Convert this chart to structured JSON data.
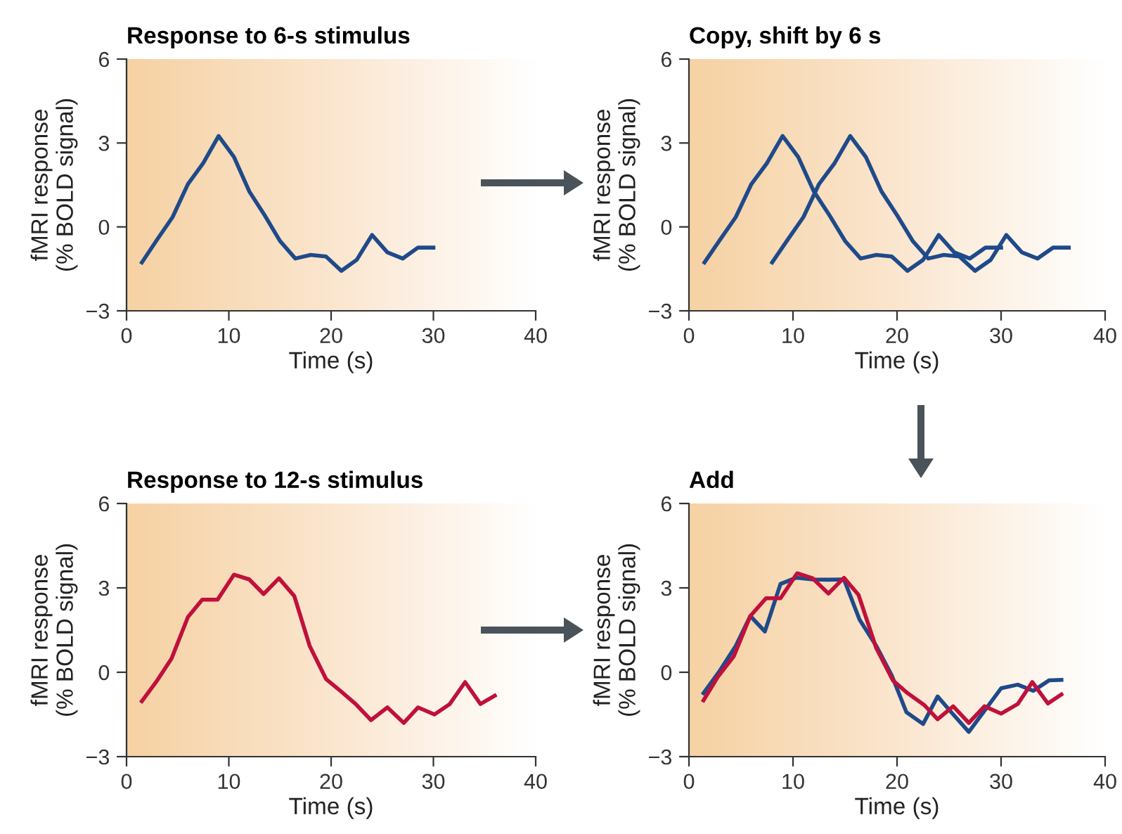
{
  "chart_data": [
    {
      "type": "line",
      "title": "Response to 6-s stimulus",
      "xlabel": "Time (s)",
      "ylabel": "fMRI response\n(% BOLD signal)",
      "xlim": [
        0,
        40
      ],
      "ylim": [
        -3,
        6
      ],
      "xticks": [
        0,
        10,
        20,
        30,
        40
      ],
      "yticks": [
        -3,
        0,
        3,
        6
      ],
      "grid": false,
      "marker": "none",
      "line_style": "solid",
      "series": [
        {
          "color": "#1f4a8a",
          "x": [
            1.5,
            3,
            4.5,
            6,
            7.5,
            9,
            10.5,
            12,
            13.5,
            15,
            16.5,
            18,
            19.5,
            21,
            22.5,
            24,
            25.5,
            27,
            28.5,
            30
          ],
          "values": [
            -1.27,
            -0.45,
            0.35,
            1.53,
            2.28,
            3.25,
            2.5,
            1.27,
            0.42,
            -0.5,
            -1.13,
            -1.0,
            -1.06,
            -1.57,
            -1.18,
            -0.29,
            -0.91,
            -1.13,
            -0.74,
            -0.74
          ]
        }
      ]
    },
    {
      "type": "line",
      "title": "Copy, shift by 6 s",
      "xlabel": "Time (s)",
      "ylabel": "fMRI response\n(% BOLD signal)",
      "xlim": [
        0,
        40
      ],
      "ylim": [
        -3,
        6
      ],
      "xticks": [
        0,
        10,
        20,
        30,
        40
      ],
      "yticks": [
        -3,
        0,
        3,
        6
      ],
      "grid": false,
      "marker": "none",
      "line_style": "solid",
      "series": [
        {
          "color": "#1f4a8a",
          "x": [
            1.5,
            3,
            4.5,
            6,
            7.5,
            9,
            10.5,
            12,
            13.5,
            15,
            16.5,
            18,
            19.5,
            21,
            22.5,
            24,
            25.5,
            27,
            28.5,
            30
          ],
          "values": [
            -1.27,
            -0.45,
            0.35,
            1.53,
            2.28,
            3.25,
            2.5,
            1.27,
            0.42,
            -0.5,
            -1.13,
            -1.0,
            -1.06,
            -1.57,
            -1.18,
            -0.29,
            -0.91,
            -1.13,
            -0.74,
            -0.74
          ]
        },
        {
          "color": "#1f4a8a",
          "x": [
            8,
            9.5,
            11,
            12.5,
            14,
            15.5,
            17,
            18.5,
            20,
            21.5,
            23,
            24.5,
            26,
            27.5,
            29,
            30.5,
            32,
            33.5,
            35,
            36.5
          ],
          "values": [
            -1.27,
            -0.45,
            0.35,
            1.53,
            2.28,
            3.25,
            2.5,
            1.27,
            0.42,
            -0.5,
            -1.13,
            -1.0,
            -1.06,
            -1.57,
            -1.18,
            -0.29,
            -0.91,
            -1.13,
            -0.74,
            -0.74
          ]
        }
      ]
    },
    {
      "type": "line",
      "title": "Response to 12-s stimulus",
      "xlabel": "Time (s)",
      "ylabel": "fMRI response\n(% BOLD signal)",
      "xlim": [
        0,
        40
      ],
      "ylim": [
        -3,
        6
      ],
      "xticks": [
        0,
        10,
        20,
        30,
        40
      ],
      "yticks": [
        -3,
        0,
        3,
        6
      ],
      "grid": false,
      "marker": "none",
      "line_style": "solid",
      "series": [
        {
          "color": "#c0103c",
          "x": [
            1.5,
            3,
            4.4,
            6,
            7.4,
            8.9,
            10.5,
            12,
            13.4,
            14.9,
            16.4,
            17.9,
            19.5,
            20.9,
            22.4,
            23.9,
            25.5,
            27.1,
            28.5,
            30.1,
            31.6,
            33.1,
            34.6,
            36
          ],
          "values": [
            -1.03,
            -0.29,
            0.49,
            1.96,
            2.58,
            2.58,
            3.47,
            3.3,
            2.78,
            3.34,
            2.71,
            0.94,
            -0.24,
            -0.66,
            -1.13,
            -1.7,
            -1.25,
            -1.8,
            -1.25,
            -1.5,
            -1.13,
            -0.35,
            -1.13,
            -0.83
          ]
        }
      ]
    },
    {
      "type": "line",
      "title": "Add",
      "xlabel": "Time (s)",
      "ylabel": "fMRI response\n(% BOLD signal)",
      "xlim": [
        0,
        40
      ],
      "ylim": [
        -3,
        6
      ],
      "xticks": [
        0,
        10,
        20,
        30,
        40
      ],
      "yticks": [
        -3,
        0,
        3,
        6
      ],
      "grid": false,
      "marker": "none",
      "line_style": "solid",
      "series": [
        {
          "color": "#1f4a8a",
          "x": [
            1.4,
            2.9,
            4.5,
            5.9,
            7.3,
            8.8,
            10.3,
            11.9,
            13.4,
            14.9,
            16.4,
            18,
            19.5,
            20.9,
            22.5,
            23.9,
            25.4,
            26.9,
            28.3,
            30,
            31.6,
            33.1,
            34.6,
            35.8
          ],
          "values": [
            -0.74,
            0.02,
            0.94,
            2.0,
            1.45,
            3.14,
            3.36,
            3.3,
            3.29,
            3.3,
            1.87,
            0.94,
            -0.12,
            -1.42,
            -1.84,
            -0.86,
            -1.5,
            -2.12,
            -1.42,
            -0.57,
            -0.44,
            -0.66,
            -0.29,
            -0.27
          ]
        },
        {
          "color": "#c0103c",
          "x": [
            1.4,
            2.8,
            4.3,
            5.9,
            7.4,
            8.8,
            10.4,
            11.9,
            13.4,
            14.9,
            16.3,
            18,
            19.6,
            21,
            22.6,
            23.9,
            25.4,
            26.9,
            28.4,
            30,
            31.6,
            33,
            34.5,
            35.8
          ],
          "values": [
            -1.0,
            -0.15,
            0.56,
            2.0,
            2.63,
            2.63,
            3.52,
            3.34,
            2.8,
            3.36,
            2.75,
            0.86,
            -0.29,
            -0.74,
            -1.16,
            -1.67,
            -1.21,
            -1.8,
            -1.21,
            -1.47,
            -1.13,
            -0.35,
            -1.11,
            -0.79
          ]
        }
      ]
    }
  ]
}
